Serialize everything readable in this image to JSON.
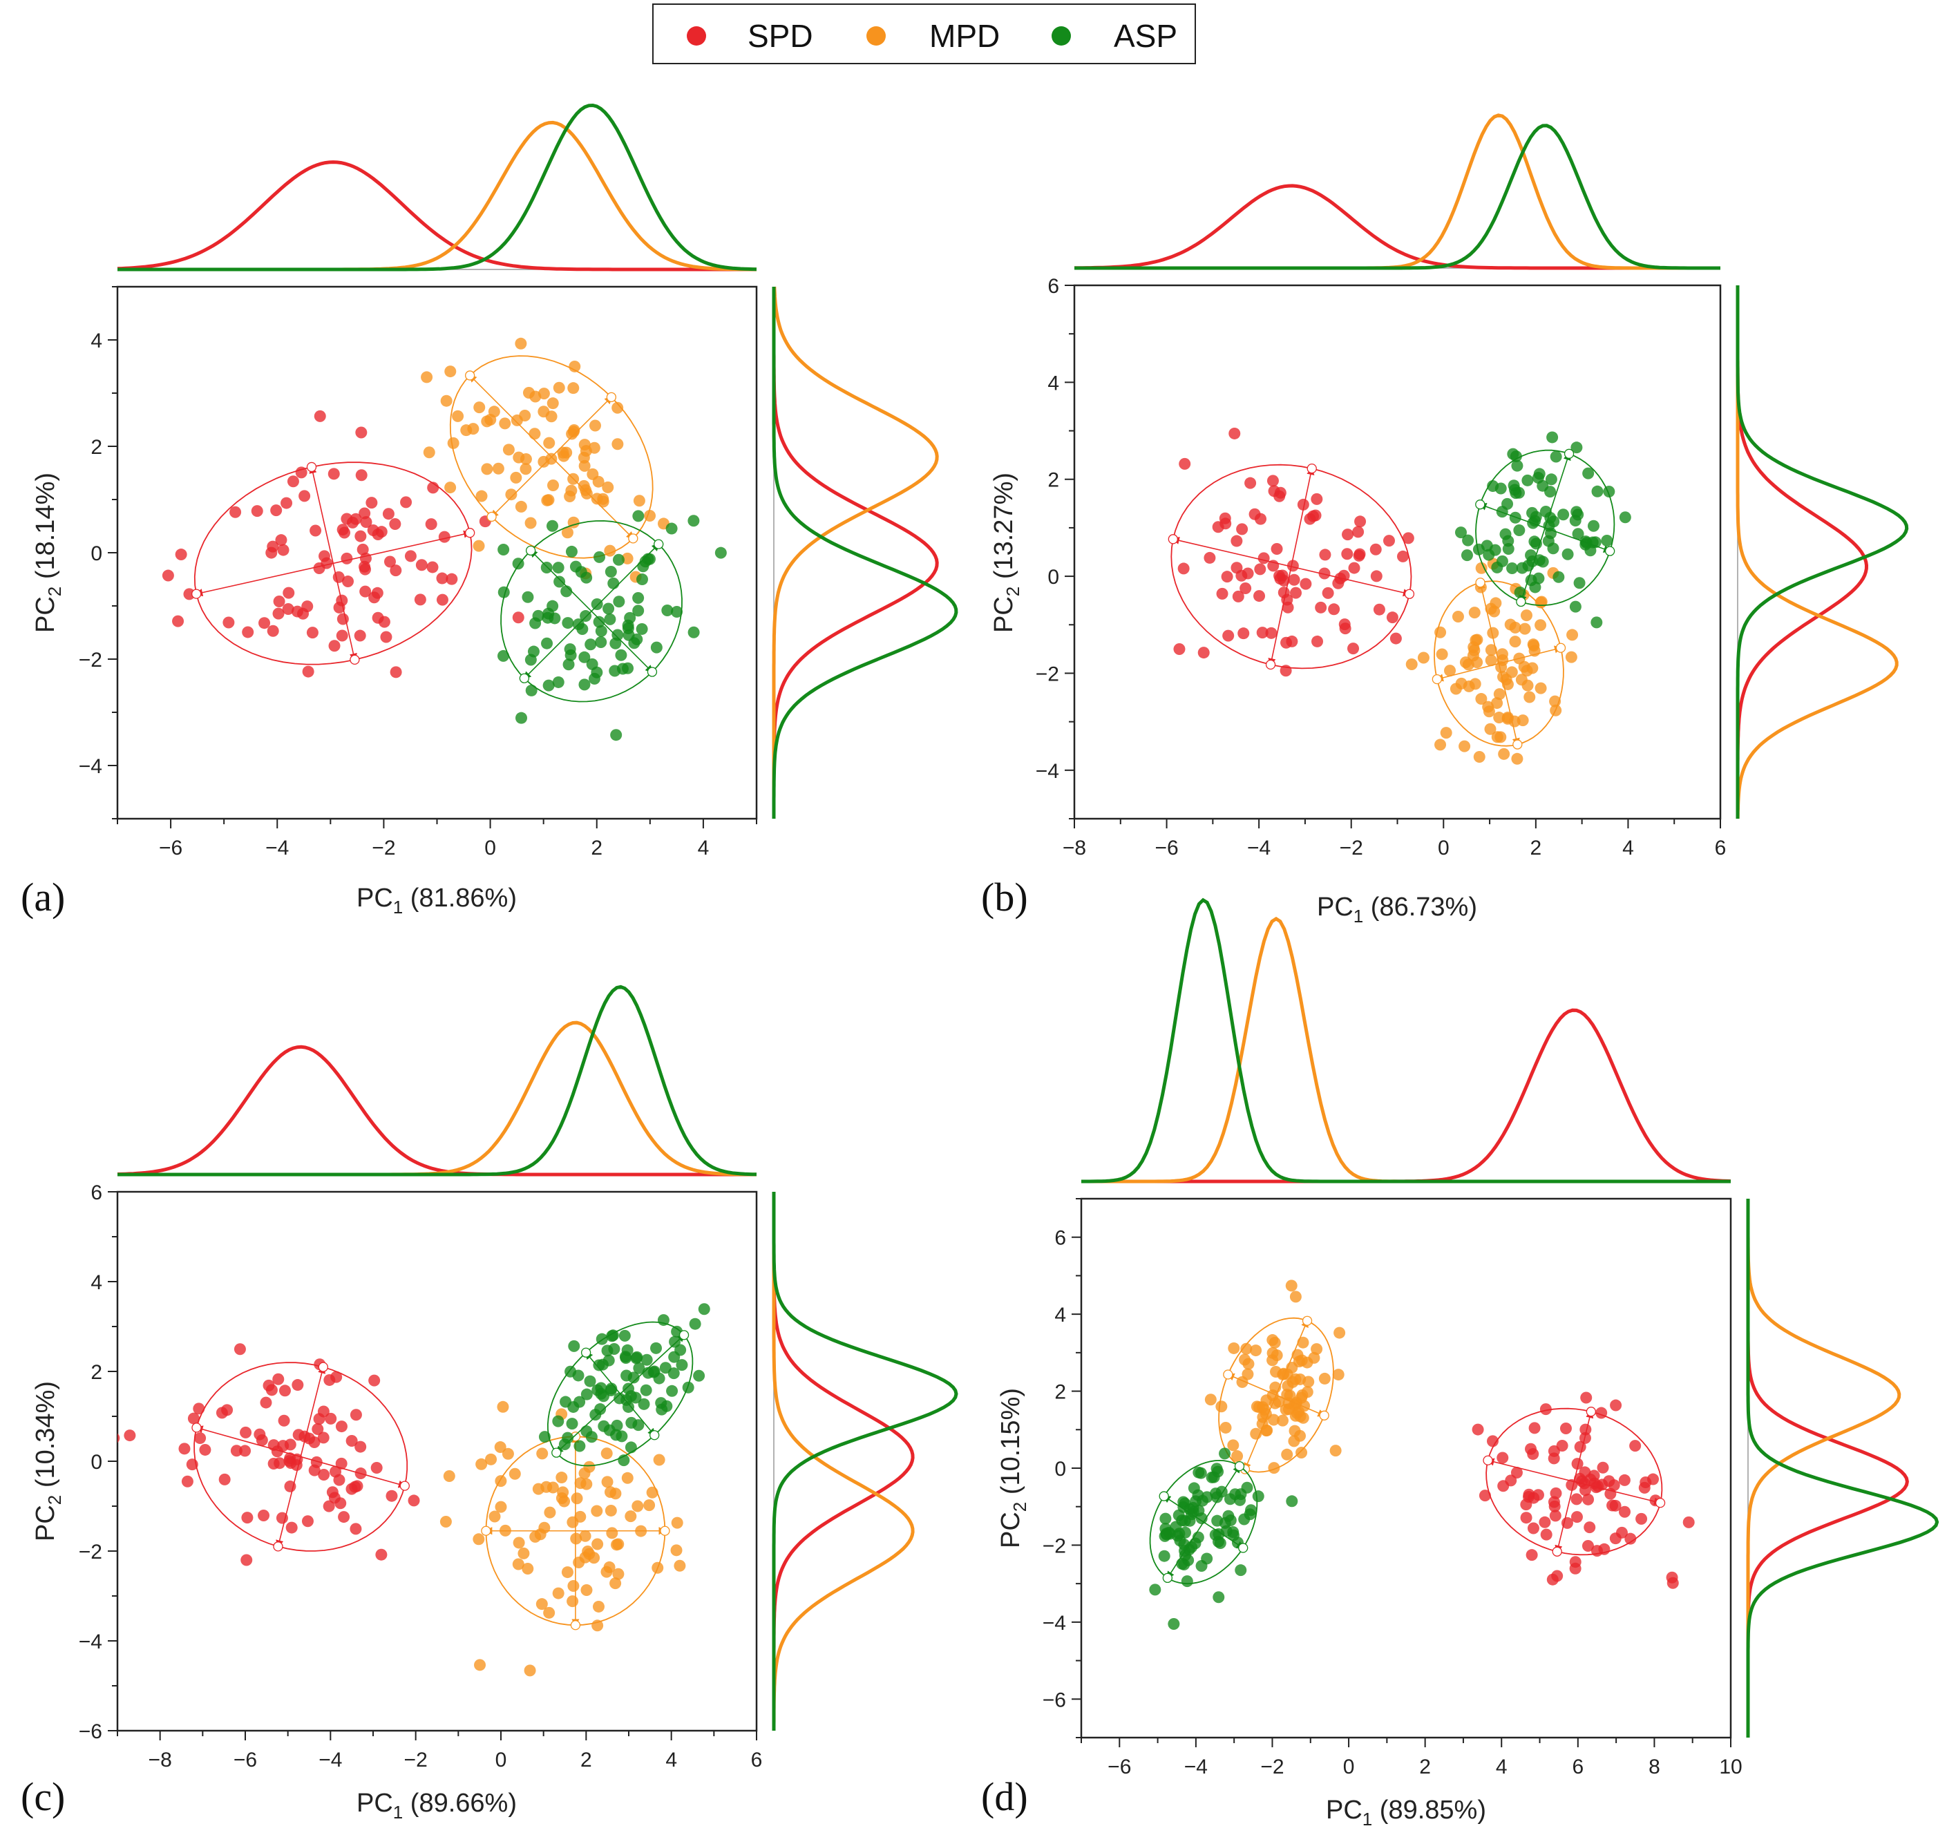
{
  "legend": {
    "items": [
      {
        "label": "SPD",
        "color": "#e8262b"
      },
      {
        "label": "MPD",
        "color": "#f7931e"
      },
      {
        "label": "ASP",
        "color": "#138a1a"
      }
    ]
  },
  "colors": {
    "SPD": "#e8262b",
    "MPD": "#f7931e",
    "ASP": "#138a1a"
  },
  "chart_data": [
    {
      "panel": "(a)",
      "type": "scatter",
      "xlabel_main": "PC",
      "xlabel_sub": "1",
      "xlabel_rest": " (81.86%)",
      "ylabel_main": "PC",
      "ylabel_sub": "2",
      "ylabel_rest": " (18.14%)",
      "xlim": [
        -7,
        5
      ],
      "ylim": [
        -5,
        5
      ],
      "xticks": [
        -6,
        -4,
        -2,
        0,
        2,
        4
      ],
      "yticks": [
        -4,
        -2,
        0,
        2,
        4
      ],
      "series": [
        {
          "name": "SPD",
          "n": 85,
          "mean": [
            -2.95,
            -0.2
          ],
          "sd": [
            1.3,
            0.95
          ],
          "rho": 0.15,
          "seed": 11
        },
        {
          "name": "MPD",
          "n": 80,
          "mean": [
            1.15,
            1.8
          ],
          "sd": [
            0.95,
            0.95
          ],
          "rho": -0.3,
          "seed": 12
        },
        {
          "name": "ASP",
          "n": 80,
          "mean": [
            1.9,
            -1.1
          ],
          "sd": [
            0.85,
            0.85
          ],
          "rho": 0.1,
          "seed": 13
        }
      ]
    },
    {
      "panel": "(b)",
      "type": "scatter",
      "xlabel_main": "PC",
      "xlabel_sub": "1",
      "xlabel_rest": " (86.73%)",
      "ylabel_main": "PC",
      "ylabel_sub": "2",
      "ylabel_rest": " (13.27%)",
      "xlim": [
        -8,
        6
      ],
      "ylim": [
        -5,
        6
      ],
      "xticks": [
        -8,
        -6,
        -4,
        -2,
        0,
        2,
        4,
        6
      ],
      "yticks": [
        -4,
        -2,
        0,
        2,
        4,
        6
      ],
      "series": [
        {
          "name": "SPD",
          "n": 80,
          "mean": [
            -3.3,
            0.2
          ],
          "sd": [
            1.3,
            1.05
          ],
          "rho": -0.1,
          "seed": 21
        },
        {
          "name": "MPD",
          "n": 80,
          "mean": [
            1.2,
            -1.8
          ],
          "sd": [
            0.7,
            0.85
          ],
          "rho": -0.1,
          "seed": 22
        },
        {
          "name": "ASP",
          "n": 80,
          "mean": [
            2.2,
            1.0
          ],
          "sd": [
            0.75,
            0.8
          ],
          "rho": 0.05,
          "seed": 23
        }
      ]
    },
    {
      "panel": "(c)",
      "type": "scatter",
      "xlabel_main": "PC",
      "xlabel_sub": "1",
      "xlabel_rest": " (89.66%)",
      "ylabel_main": "PC",
      "ylabel_sub": "2",
      "ylabel_rest": " (10.34%)",
      "xlim": [
        -9,
        6
      ],
      "ylim": [
        -6,
        6
      ],
      "xticks": [
        -8,
        -6,
        -4,
        -2,
        0,
        2,
        4,
        6
      ],
      "yticks": [
        -6,
        -4,
        -2,
        0,
        2,
        4,
        6
      ],
      "series": [
        {
          "name": "SPD",
          "n": 80,
          "mean": [
            -4.7,
            0.1
          ],
          "sd": [
            1.25,
            1.05
          ],
          "rho": -0.1,
          "seed": 31
        },
        {
          "name": "MPD",
          "n": 80,
          "mean": [
            1.75,
            -1.55
          ],
          "sd": [
            1.05,
            1.05
          ],
          "rho": 0.0,
          "seed": 32
        },
        {
          "name": "ASP",
          "n": 80,
          "mean": [
            2.8,
            1.5
          ],
          "sd": [
            0.85,
            0.8
          ],
          "rho": 0.45,
          "seed": 33
        }
      ]
    },
    {
      "panel": "(d)",
      "type": "scatter",
      "xlabel_main": "PC",
      "xlabel_sub": "1",
      "xlabel_rest": " (89.85%)",
      "ylabel_main": "PC",
      "ylabel_sub": "2",
      "ylabel_rest": " (10.15%)",
      "xlim": [
        -7,
        10
      ],
      "ylim": [
        -7,
        7
      ],
      "xticks": [
        -6,
        -4,
        -2,
        0,
        2,
        4,
        6,
        8,
        10
      ],
      "yticks": [
        -6,
        -4,
        -2,
        0,
        2,
        4,
        6
      ],
      "series": [
        {
          "name": "SPD",
          "n": 80,
          "mean": [
            5.9,
            -0.35
          ],
          "sd": [
            1.15,
            0.95
          ],
          "rho": -0.1,
          "seed": 41
        },
        {
          "name": "MPD",
          "n": 80,
          "mean": [
            -1.9,
            1.9
          ],
          "sd": [
            0.75,
            1.0
          ],
          "rho": 0.3,
          "seed": 42
        },
        {
          "name": "ASP",
          "n": 80,
          "mean": [
            -3.8,
            -1.4
          ],
          "sd": [
            0.7,
            0.8
          ],
          "rho": 0.3,
          "seed": 43
        }
      ]
    }
  ]
}
